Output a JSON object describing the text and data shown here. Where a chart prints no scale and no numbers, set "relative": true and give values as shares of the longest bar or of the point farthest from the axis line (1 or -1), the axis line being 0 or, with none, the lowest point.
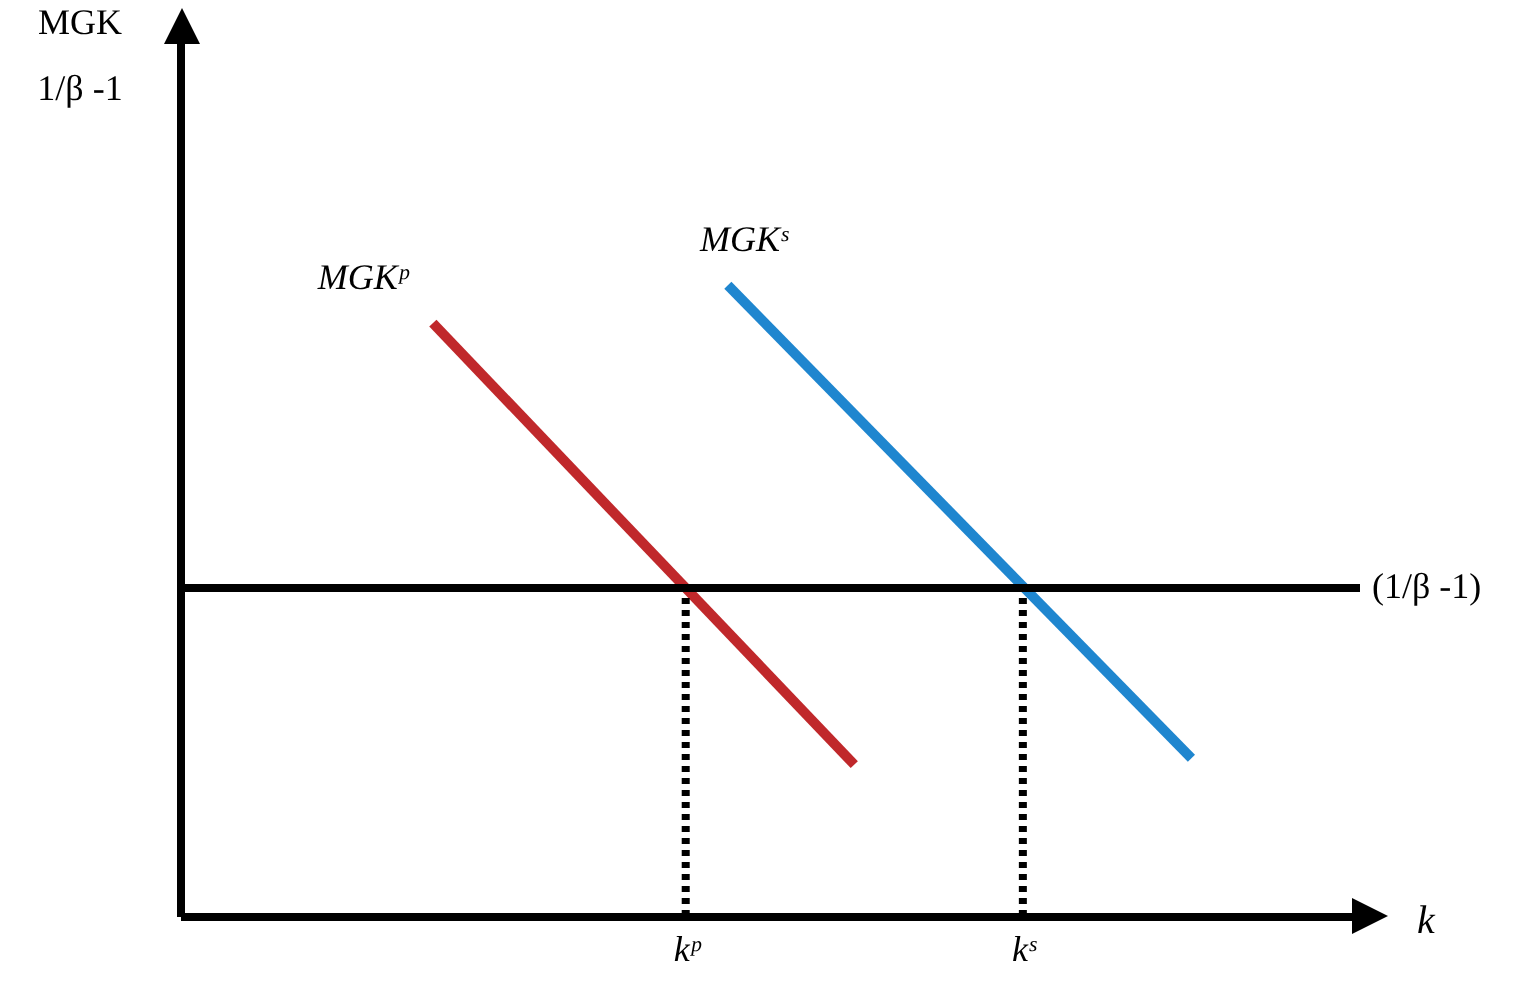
{
  "chart_data": {
    "type": "line",
    "relative": true,
    "xlabel": "k",
    "categories": [
      null,
      null,
      null,
      null,
      null,
      null,
      null,
      null,
      null,
      null,
      null,
      null,
      "kᵖ",
      null,
      null,
      null,
      null,
      null,
      null,
      null,
      "kˢ",
      null,
      null,
      null,
      null,
      null,
      null,
      null,
      null
    ],
    "series": [
      {
        "name": "MGKᵖ",
        "color": "#c0282b",
        "values": [
          null,
          null,
          null,
          null,
          null,
          null,
          0.94,
          null,
          null,
          null,
          null,
          null,
          null,
          null,
          null,
          null,
          0.24,
          null,
          null,
          null,
          null,
          null,
          null,
          null,
          null,
          null,
          null,
          null,
          null
        ]
      },
      {
        "name": "MGKˢ",
        "color": "#1f86cf",
        "values": [
          null,
          null,
          null,
          null,
          null,
          null,
          null,
          null,
          null,
          null,
          null,
          null,
          null,
          1,
          null,
          null,
          null,
          null,
          null,
          null,
          null,
          null,
          null,
          null,
          0.25,
          null,
          null,
          null,
          null
        ]
      }
    ],
    "ref_lines": [
      {
        "axis": "y",
        "value": 0.52,
        "label": "(1/β -1)",
        "color": "#000000"
      },
      {
        "axis": "x",
        "value": "kᵖ",
        "line_style": "dotted",
        "color": "#000000"
      },
      {
        "axis": "x",
        "value": "kˢ",
        "line_style": "dotted",
        "color": "#000000"
      }
    ],
    "annotations": [
      "MGK",
      "1/β -1"
    ],
    "grid": false
  }
}
